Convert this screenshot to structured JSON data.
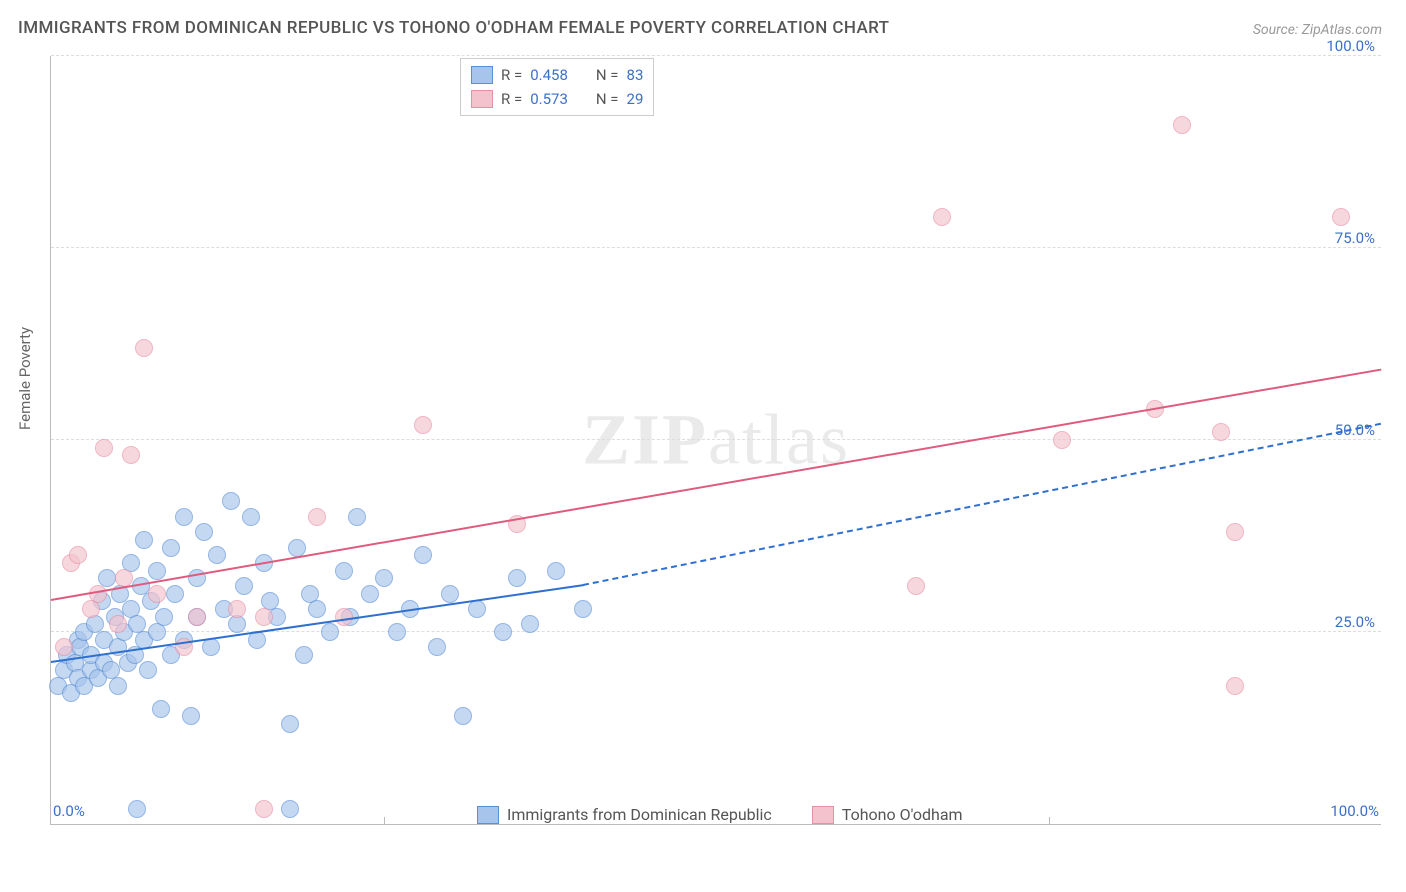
{
  "title": "IMMIGRANTS FROM DOMINICAN REPUBLIC VS TOHONO O'ODHAM FEMALE POVERTY CORRELATION CHART",
  "source": "Source: ZipAtlas.com",
  "ylabel": "Female Poverty",
  "watermark": "ZIPatlas",
  "chart": {
    "type": "scatter",
    "xlim": [
      0,
      100
    ],
    "ylim": [
      0,
      100
    ],
    "xtick_labels": [
      "0.0%",
      "100.0%"
    ],
    "xtick_positions": [
      0,
      100
    ],
    "xtick_marks": [
      25,
      50,
      75
    ],
    "ytick_labels": [
      "25.0%",
      "50.0%",
      "75.0%",
      "100.0%"
    ],
    "ytick_positions": [
      25,
      50,
      75,
      100
    ],
    "grid_color": "#dddddd",
    "axis_color": "#bbbbbb",
    "background_color": "#ffffff",
    "tick_font_color": "#3b6fc9",
    "label_font_color": "#666666",
    "label_fontsize": 15,
    "marker_radius": 8,
    "marker_opacity": 0.65
  },
  "series": [
    {
      "name": "Immigrants from Dominican Republic",
      "color_fill": "#a6c4ec",
      "color_stroke": "#5a8fd6",
      "trend_color": "#2f6fd0",
      "R": "0.458",
      "N": "83",
      "trend": {
        "x1": 0,
        "y1": 21,
        "x2": 40,
        "y2": 31,
        "dash_ext_x2": 100,
        "dash_ext_y2": 52
      },
      "points": [
        [
          0.5,
          18
        ],
        [
          1,
          20
        ],
        [
          1.2,
          22
        ],
        [
          1.5,
          17
        ],
        [
          1.8,
          21
        ],
        [
          2,
          19
        ],
        [
          2,
          24
        ],
        [
          2.2,
          23
        ],
        [
          2.5,
          18
        ],
        [
          2.5,
          25
        ],
        [
          3,
          20
        ],
        [
          3,
          22
        ],
        [
          3.3,
          26
        ],
        [
          3.5,
          19
        ],
        [
          3.8,
          29
        ],
        [
          4,
          21
        ],
        [
          4,
          24
        ],
        [
          4.2,
          32
        ],
        [
          4.5,
          20
        ],
        [
          4.8,
          27
        ],
        [
          5,
          23
        ],
        [
          5,
          18
        ],
        [
          5.2,
          30
        ],
        [
          5.5,
          25
        ],
        [
          5.8,
          21
        ],
        [
          6,
          28
        ],
        [
          6,
          34
        ],
        [
          6.3,
          22
        ],
        [
          6.5,
          26
        ],
        [
          6.8,
          31
        ],
        [
          7,
          24
        ],
        [
          7,
          37
        ],
        [
          7.3,
          20
        ],
        [
          7.5,
          29
        ],
        [
          8,
          33
        ],
        [
          8,
          25
        ],
        [
          8.3,
          15
        ],
        [
          8.5,
          27
        ],
        [
          9,
          22
        ],
        [
          9,
          36
        ],
        [
          9.3,
          30
        ],
        [
          10,
          24
        ],
        [
          10,
          40
        ],
        [
          10.5,
          14
        ],
        [
          11,
          32
        ],
        [
          11,
          27
        ],
        [
          11.5,
          38
        ],
        [
          12,
          23
        ],
        [
          12.5,
          35
        ],
        [
          13,
          28
        ],
        [
          13.5,
          42
        ],
        [
          14,
          26
        ],
        [
          14.5,
          31
        ],
        [
          15,
          40
        ],
        [
          15.5,
          24
        ],
        [
          16,
          34
        ],
        [
          16.5,
          29
        ],
        [
          17,
          27
        ],
        [
          18,
          13
        ],
        [
          18.5,
          36
        ],
        [
          19,
          22
        ],
        [
          19.5,
          30
        ],
        [
          20,
          28
        ],
        [
          21,
          25
        ],
        [
          22,
          33
        ],
        [
          22.5,
          27
        ],
        [
          23,
          40
        ],
        [
          24,
          30
        ],
        [
          25,
          32
        ],
        [
          26,
          25
        ],
        [
          27,
          28
        ],
        [
          28,
          35
        ],
        [
          29,
          23
        ],
        [
          30,
          30
        ],
        [
          31,
          14
        ],
        [
          32,
          28
        ],
        [
          34,
          25
        ],
        [
          35,
          32
        ],
        [
          36,
          26
        ],
        [
          38,
          33
        ],
        [
          40,
          28
        ],
        [
          6.5,
          2
        ],
        [
          18,
          2
        ]
      ]
    },
    {
      "name": "Tohono O'odham",
      "color_fill": "#f4c2cd",
      "color_stroke": "#e78fa5",
      "trend_color": "#e05a7d",
      "R": "0.573",
      "N": "29",
      "trend": {
        "x1": 0,
        "y1": 29,
        "x2": 100,
        "y2": 59
      },
      "points": [
        [
          1,
          23
        ],
        [
          1.5,
          34
        ],
        [
          2,
          35
        ],
        [
          3,
          28
        ],
        [
          3.5,
          30
        ],
        [
          4,
          49
        ],
        [
          5,
          26
        ],
        [
          5.5,
          32
        ],
        [
          6,
          48
        ],
        [
          7,
          62
        ],
        [
          8,
          30
        ],
        [
          10,
          23
        ],
        [
          11,
          27
        ],
        [
          14,
          28
        ],
        [
          16,
          27
        ],
        [
          20,
          40
        ],
        [
          22,
          27
        ],
        [
          28,
          52
        ],
        [
          35,
          39
        ],
        [
          65,
          31
        ],
        [
          67,
          79
        ],
        [
          76,
          50
        ],
        [
          83,
          54
        ],
        [
          85,
          91
        ],
        [
          88,
          51
        ],
        [
          89,
          38
        ],
        [
          89,
          18
        ],
        [
          97,
          79
        ],
        [
          16,
          2
        ]
      ]
    }
  ],
  "legend_top": {
    "R_label": "R =",
    "N_label": "N ="
  },
  "legend_bottom_labels": [
    "Immigrants from Dominican Republic",
    "Tohono O'odham"
  ]
}
